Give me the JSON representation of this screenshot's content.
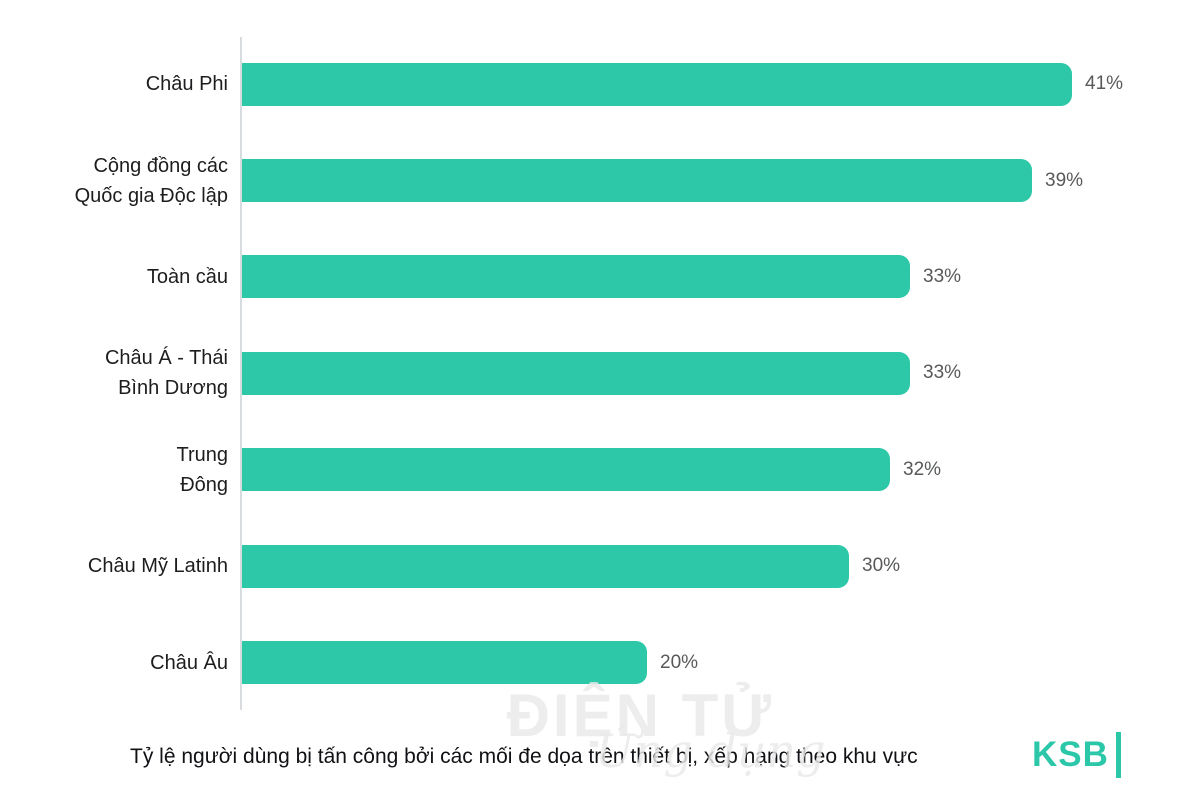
{
  "chart_data": {
    "type": "bar",
    "orientation": "horizontal",
    "categories": [
      "Châu Phi",
      "Cộng đồng các\nQuốc gia Độc lập",
      "Toàn cầu",
      "Châu Á - Thái\nBình Dương",
      "Trung\nĐông",
      "Châu Mỹ Latinh",
      "Châu Âu"
    ],
    "values": [
      41,
      39,
      33,
      33,
      32,
      30,
      20
    ],
    "value_labels": [
      "41%",
      "39%",
      "33%",
      "33%",
      "32%",
      "30%",
      "20%"
    ],
    "xlim": [
      0,
      41
    ],
    "grid": false,
    "legend": false,
    "bar_color": "#2dc8a8",
    "title": "Tỷ lệ người dùng bị tấn công bởi các mối đe dọa trên thiết bị, xếp hạng theo khu vực"
  },
  "caption": "Tỷ lệ người dùng bị tấn công bởi các mối đe dọa trên thiết bị, xếp hạng theo khu vực",
  "branding": {
    "logo_text": "KSB",
    "logo_color": "#2cc7a9"
  },
  "watermark": {
    "line1": "ĐIỆN TỬ",
    "line2": "Ứng dụng"
  },
  "colors": {
    "bar": "#2dc8a8",
    "axis_line": "#d9dcde",
    "category_label": "#1d1d1f",
    "value_label": "#58595b",
    "caption": "#101114"
  }
}
